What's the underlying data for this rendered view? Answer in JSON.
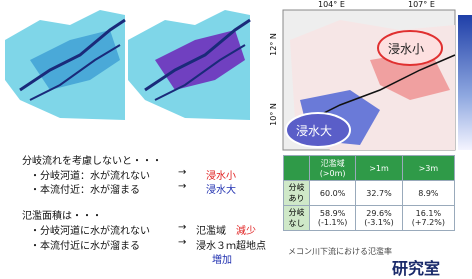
{
  "maps": {
    "lon_labels": [
      "104° E",
      "107° E"
    ],
    "lat_labels": [
      "12° N",
      "10° N"
    ],
    "bubbles": [
      "浸水小",
      "浸水大"
    ]
  },
  "notes": [
    {
      "lead": "分岐流れを考慮しないと・・・",
      "items": [
        {
          "text": "・分岐河道：水が流れない",
          "arrow": "→",
          "highlight": "浸水小"
        },
        {
          "text": "・本流付近：水が溜まる",
          "arrow": "→",
          "highlight": "浸水大"
        }
      ]
    },
    {
      "lead": "氾濫面積は・・・",
      "items": [
        {
          "text": "・分岐河道に水が流れない",
          "arrow": "→",
          "result": "氾濫域",
          "highlight": "減少"
        },
        {
          "text": "・本流付近に水が溜まる",
          "arrow": "→",
          "result": "浸水３ｍ超地点",
          "highlight": "増加"
        }
      ]
    }
  ],
  "table": {
    "header": [
      "氾濫域\n(>0m)",
      ">1m",
      ">3m"
    ],
    "rows": [
      [
        "分岐\nあり",
        "60.0%",
        "32.7%",
        "8.9%"
      ],
      [
        "分岐\nなし",
        "58.9%\n(-1.1%)",
        "29.6%\n(-3.1%)",
        "16.1%\n(+7.2%)"
      ]
    ],
    "caption": "メコン川下流における氾濫率"
  },
  "footer": "研究室"
}
